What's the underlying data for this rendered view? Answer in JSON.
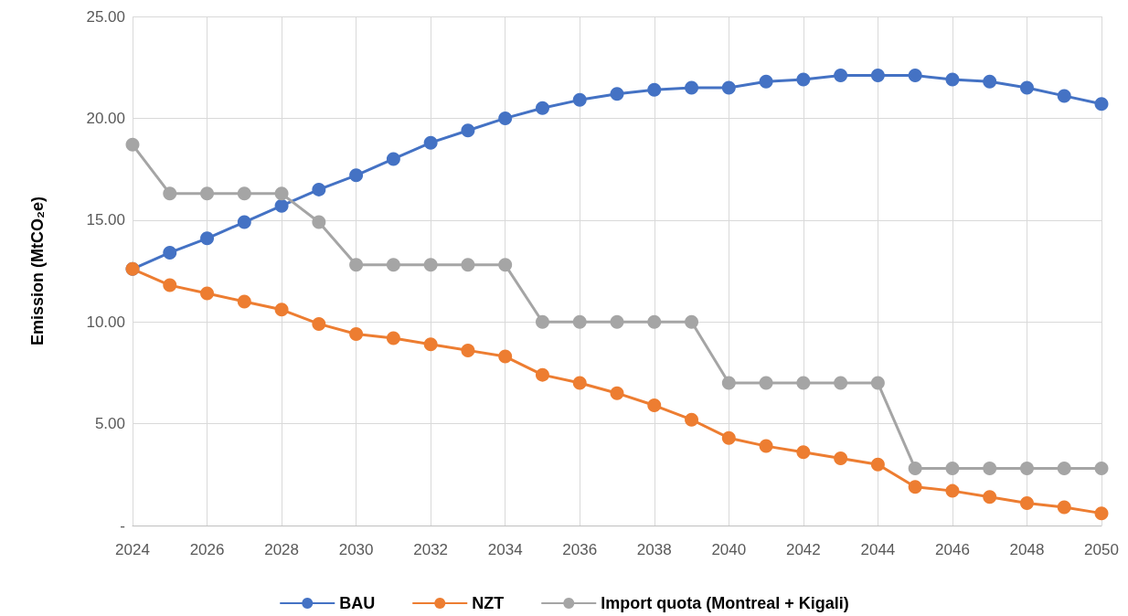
{
  "chart_data": {
    "type": "line",
    "ylabel": "Emission (MtCO₂e)",
    "x": [
      2024,
      2025,
      2026,
      2027,
      2028,
      2029,
      2030,
      2031,
      2032,
      2033,
      2034,
      2035,
      2036,
      2037,
      2038,
      2039,
      2040,
      2041,
      2042,
      2043,
      2044,
      2045,
      2046,
      2047,
      2048,
      2049,
      2050
    ],
    "series": [
      {
        "name": "BAU",
        "color": "#4472c4",
        "values": [
          12.6,
          13.4,
          14.1,
          14.9,
          15.7,
          16.5,
          17.2,
          18.0,
          18.8,
          19.4,
          20.0,
          20.5,
          20.9,
          21.2,
          21.4,
          21.5,
          21.5,
          21.8,
          21.9,
          22.1,
          22.1,
          22.1,
          21.9,
          21.8,
          21.5,
          21.1,
          20.7
        ]
      },
      {
        "name": "NZT",
        "color": "#ed7d31",
        "values": [
          12.6,
          11.8,
          11.4,
          11.0,
          10.6,
          9.9,
          9.4,
          9.2,
          8.9,
          8.6,
          8.3,
          7.4,
          7.0,
          6.5,
          5.9,
          5.2,
          4.3,
          3.9,
          3.6,
          3.3,
          3.0,
          1.9,
          1.7,
          1.4,
          1.1,
          0.9,
          0.6
        ]
      },
      {
        "name": "Import quota (Montreal + Kigali)",
        "color": "#a5a5a5",
        "values": [
          18.7,
          16.3,
          16.3,
          16.3,
          16.3,
          14.9,
          12.8,
          12.8,
          12.8,
          12.8,
          12.8,
          10.0,
          10.0,
          10.0,
          10.0,
          10.0,
          7.0,
          7.0,
          7.0,
          7.0,
          7.0,
          2.8,
          2.8,
          2.8,
          2.8,
          2.8,
          2.8
        ]
      }
    ],
    "xlim": [
      2024,
      2050
    ],
    "xticks": [
      2024,
      2026,
      2028,
      2030,
      2032,
      2034,
      2036,
      2038,
      2040,
      2042,
      2044,
      2046,
      2048,
      2050
    ],
    "ylim": [
      0,
      25
    ],
    "yticks": [
      {
        "value": 0,
        "label": "-"
      },
      {
        "value": 5,
        "label": "5.00"
      },
      {
        "value": 10,
        "label": "10.00"
      },
      {
        "value": 15,
        "label": "15.00"
      },
      {
        "value": 20,
        "label": "20.00"
      },
      {
        "value": 25,
        "label": "25.00"
      }
    ],
    "grid": true,
    "legend": "bottom",
    "marker": "circle",
    "line_style": "solid"
  }
}
